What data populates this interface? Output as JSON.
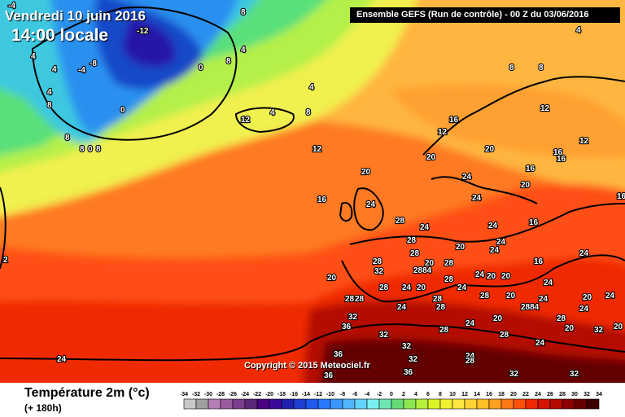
{
  "header": {
    "date": "Vendredi 10 juin 2016",
    "local_time": "14:00 locale",
    "run_info": "Ensemble GEFS  (Run de contrôle)  - 00 Z du 03/06/2016"
  },
  "map": {
    "type": "temperature-2m-forecast",
    "region": "North Atlantic / Europe",
    "labels": [
      {
        "v": "-4",
        "p": [
          10,
          10
        ]
      },
      {
        "v": "-12",
        "p": [
          168,
          41
        ]
      },
      {
        "v": "-8",
        "p": [
          110,
          81
        ]
      },
      {
        "v": "-4",
        "p": [
          96,
          89
        ]
      },
      {
        "v": "0",
        "p": [
          244,
          86
        ]
      },
      {
        "v": "8",
        "p": [
          278,
          78
        ]
      },
      {
        "v": "4",
        "p": [
          296,
          64
        ]
      },
      {
        "v": "8",
        "p": [
          296,
          18
        ]
      },
      {
        "v": "4",
        "p": [
          38,
          72
        ]
      },
      {
        "v": "4",
        "p": [
          64,
          88
        ]
      },
      {
        "v": "0",
        "p": [
          148,
          138
        ]
      },
      {
        "v": "4",
        "p": [
          58,
          116
        ]
      },
      {
        "v": "8",
        "p": [
          58,
          132
        ]
      },
      {
        "v": "8",
        "p": [
          80,
          172
        ]
      },
      {
        "v": "8",
        "p": [
          98,
          186
        ]
      },
      {
        "v": "0",
        "p": [
          108,
          186
        ]
      },
      {
        "v": "8",
        "p": [
          118,
          186
        ]
      },
      {
        "v": "4",
        "p": [
          380,
          110
        ]
      },
      {
        "v": "4",
        "p": [
          332,
          141
        ]
      },
      {
        "v": "12",
        "p": [
          296,
          150
        ]
      },
      {
        "v": "8",
        "p": [
          376,
          141
        ]
      },
      {
        "v": "4",
        "p": [
          708,
          40
        ]
      },
      {
        "v": "8",
        "p": [
          626,
          86
        ]
      },
      {
        "v": "8",
        "p": [
          662,
          86
        ]
      },
      {
        "v": "12",
        "p": [
          664,
          136
        ]
      },
      {
        "v": "16",
        "p": [
          552,
          150
        ]
      },
      {
        "v": "12",
        "p": [
          538,
          165
        ]
      },
      {
        "v": "12",
        "p": [
          384,
          186
        ]
      },
      {
        "v": "20",
        "p": [
          596,
          186
        ]
      },
      {
        "v": "20",
        "p": [
          524,
          196
        ]
      },
      {
        "v": "16",
        "p": [
          680,
          190
        ]
      },
      {
        "v": "16",
        "p": [
          684,
          198
        ]
      },
      {
        "v": "12",
        "p": [
          712,
          176
        ]
      },
      {
        "v": "20",
        "p": [
          444,
          214
        ]
      },
      {
        "v": "24",
        "p": [
          568,
          220
        ]
      },
      {
        "v": "16",
        "p": [
          646,
          210
        ]
      },
      {
        "v": "20",
        "p": [
          640,
          230
        ]
      },
      {
        "v": "16",
        "p": [
          390,
          248
        ]
      },
      {
        "v": "24",
        "p": [
          450,
          254
        ]
      },
      {
        "v": "24",
        "p": [
          580,
          246
        ]
      },
      {
        "v": "16",
        "p": [
          758,
          244
        ]
      },
      {
        "v": "28",
        "p": [
          486,
          274
        ]
      },
      {
        "v": "24",
        "p": [
          516,
          282
        ]
      },
      {
        "v": "16",
        "p": [
          650,
          276
        ]
      },
      {
        "v": "24",
        "p": [
          600,
          280
        ]
      },
      {
        "v": "28",
        "p": [
          500,
          298
        ]
      },
      {
        "v": "24",
        "p": [
          610,
          300
        ]
      },
      {
        "v": "20",
        "p": [
          560,
          306
        ]
      },
      {
        "v": "28",
        "p": [
          504,
          314
        ]
      },
      {
        "v": "24",
        "p": [
          602,
          310
        ]
      },
      {
        "v": "28",
        "p": [
          458,
          324
        ]
      },
      {
        "v": "28",
        "p": [
          546,
          326
        ]
      },
      {
        "v": "32",
        "p": [
          460,
          336
        ]
      },
      {
        "v": "20",
        "p": [
          522,
          326
        ]
      },
      {
        "v": "2884",
        "p": [
          508,
          335
        ]
      },
      {
        "v": "16",
        "p": [
          656,
          324
        ]
      },
      {
        "v": "24",
        "p": [
          712,
          314
        ]
      },
      {
        "v": "20",
        "p": [
          402,
          344
        ]
      },
      {
        "v": "24",
        "p": [
          494,
          356
        ]
      },
      {
        "v": "28",
        "p": [
          466,
          356
        ]
      },
      {
        "v": "20",
        "p": [
          512,
          356
        ]
      },
      {
        "v": "28",
        "p": [
          546,
          346
        ]
      },
      {
        "v": "24",
        "p": [
          584,
          340
        ]
      },
      {
        "v": "20",
        "p": [
          598,
          342
        ]
      },
      {
        "v": "20",
        "p": [
          616,
          342
        ]
      },
      {
        "v": "24",
        "p": [
          562,
          356
        ]
      },
      {
        "v": "24",
        "p": [
          668,
          350
        ]
      },
      {
        "v": "28",
        "p": [
          424,
          370
        ]
      },
      {
        "v": "28",
        "p": [
          436,
          370
        ]
      },
      {
        "v": "28",
        "p": [
          532,
          370
        ]
      },
      {
        "v": "20",
        "p": [
          622,
          366
        ]
      },
      {
        "v": "24",
        "p": [
          662,
          370
        ]
      },
      {
        "v": "20",
        "p": [
          716,
          368
        ]
      },
      {
        "v": "24",
        "p": [
          744,
          366
        ]
      },
      {
        "v": "24",
        "p": [
          488,
          380
        ]
      },
      {
        "v": "28",
        "p": [
          536,
          380
        ]
      },
      {
        "v": "28",
        "p": [
          590,
          366
        ]
      },
      {
        "v": "2884",
        "p": [
          640,
          380
        ]
      },
      {
        "v": "24",
        "p": [
          712,
          382
        ]
      },
      {
        "v": "32",
        "p": [
          428,
          392
        ]
      },
      {
        "v": "20",
        "p": [
          606,
          394
        ]
      },
      {
        "v": "28",
        "p": [
          684,
          394
        ]
      },
      {
        "v": "36",
        "p": [
          420,
          404
        ]
      },
      {
        "v": "24",
        "p": [
          572,
          400
        ]
      },
      {
        "v": "28",
        "p": [
          540,
          408
        ]
      },
      {
        "v": "20",
        "p": [
          694,
          406
        ]
      },
      {
        "v": "32",
        "p": [
          730,
          408
        ]
      },
      {
        "v": "20",
        "p": [
          754,
          404
        ]
      },
      {
        "v": "32",
        "p": [
          466,
          414
        ]
      },
      {
        "v": "28",
        "p": [
          614,
          414
        ]
      },
      {
        "v": "24",
        "p": [
          658,
          424
        ]
      },
      {
        "v": "32",
        "p": [
          494,
          428
        ]
      },
      {
        "v": "36",
        "p": [
          410,
          438
        ]
      },
      {
        "v": "24",
        "p": [
          572,
          440
        ]
      },
      {
        "v": "28",
        "p": [
          572,
          446
        ]
      },
      {
        "v": "32",
        "p": [
          502,
          444
        ]
      },
      {
        "v": "24",
        "p": [
          70,
          444
        ]
      },
      {
        "v": "36",
        "p": [
          398,
          464
        ]
      },
      {
        "v": "36",
        "p": [
          496,
          460
        ]
      },
      {
        "v": "32",
        "p": [
          626,
          462
        ]
      },
      {
        "v": "32",
        "p": [
          700,
          462
        ]
      },
      {
        "v": "2",
        "p": [
          4,
          322
        ]
      }
    ]
  },
  "copyright": "Copyright © 2015 Meteociel.fr",
  "legend": {
    "title": "Température 2m (°c)",
    "subtitle": "(+ 180h)",
    "ticks": [
      "-34",
      "-32",
      "-30",
      "-28",
      "-26",
      "-24",
      "-22",
      "-20",
      "-18",
      "-16",
      "-14",
      "-12",
      "-10",
      "-8",
      "-6",
      "-4",
      "-2",
      "0",
      "2",
      "4",
      "6",
      "8",
      "10",
      "12",
      "14",
      "16",
      "18",
      "20",
      "22",
      "24",
      "26",
      "28",
      "30",
      "32",
      "34"
    ],
    "colors": [
      "#c8c8c8",
      "#a0a0a0",
      "#b47fb4",
      "#9a5aa0",
      "#7a3c8c",
      "#5a2878",
      "#4b0082",
      "#3a0a9a",
      "#2020b0",
      "#1e3ed0",
      "#1e5af0",
      "#2878ff",
      "#3c96ff",
      "#50b4ff",
      "#64d2ff",
      "#78f0f0",
      "#6ee6b4",
      "#64dc78",
      "#8ce650",
      "#b4f03c",
      "#dcf528",
      "#f0f032",
      "#ffe640",
      "#ffd232",
      "#ffbe28",
      "#ffa01e",
      "#ff7814",
      "#ff500a",
      "#f02800",
      "#d21400",
      "#b40a00",
      "#8c0000",
      "#640000",
      "#3c0000"
    ]
  }
}
